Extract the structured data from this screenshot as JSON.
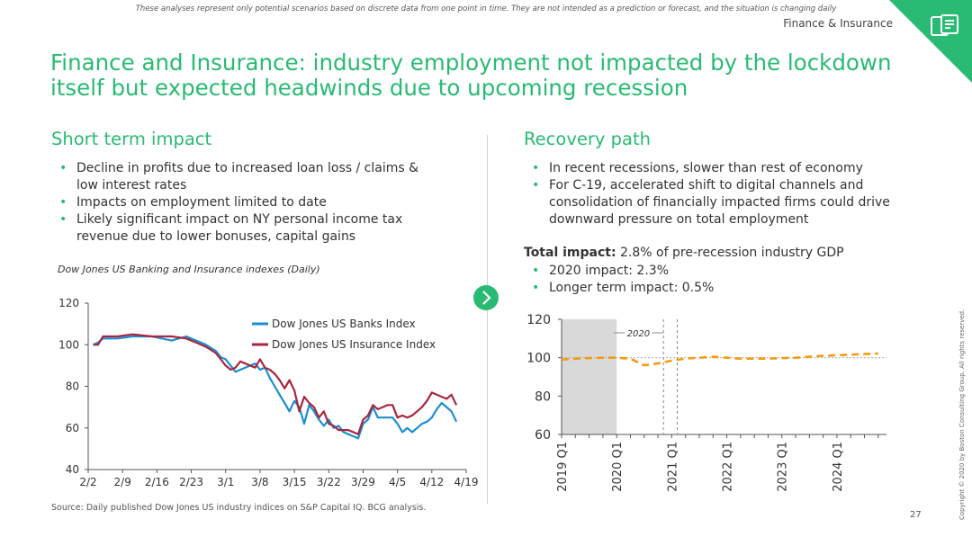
{
  "header": {
    "disclaimer": "These analyses represent only potential scenarios based on discrete data from one point in time. They are not intended as a prediction or forecast, and the situation is changing daily",
    "section": "Finance & Insurance",
    "title_line1": "Finance and Insurance: industry employment not impacted by the lockdown",
    "title_line2": "itself but expected headwinds due to upcoming recession"
  },
  "left": {
    "heading": "Short term impact",
    "bullets": [
      [
        "Decline in profits due to increased loan loss / claims &",
        "low interest rates"
      ],
      [
        "Impacts on employment limited to date"
      ],
      [
        "Likely significant impact on NY personal income tax",
        "revenue due to lower bonuses, capital gains"
      ]
    ],
    "chart_caption": "Dow Jones US Banking and Insurance indexes (Daily)"
  },
  "right": {
    "heading": "Recovery path",
    "bullets": [
      [
        "In recent recessions, slower than rest of economy"
      ],
      [
        "For C-19, accelerated shift to digital channels and",
        "consolidation of financially impacted firms could drive",
        "downward pressure on total employment"
      ]
    ],
    "total_label": "Total impact:",
    "total_text": " 2.8% of pre-recession industry GDP",
    "impact_bullets": [
      [
        "2020 impact: 2.3%"
      ],
      [
        "Longer term impact: 0.5%"
      ]
    ]
  },
  "footer": {
    "source": "Source: Daily published Dow Jones US industry indices on S&P Capital IQ. BCG analysis.",
    "page_number": "27",
    "copyright": "Copyright © 2020 by Boston Consulting Group. All rights reserved."
  },
  "colors": {
    "accent": "#29ba74",
    "banks": "#1a8fd1",
    "insurance": "#a8263f",
    "forecast": "#f39c12"
  },
  "chart_data": [
    {
      "type": "line",
      "ylim": [
        40,
        120
      ],
      "yticks": [
        40,
        60,
        80,
        100,
        120
      ],
      "xticks": [
        "2/2",
        "2/9",
        "2/16",
        "2/23",
        "3/1",
        "3/8",
        "3/15",
        "3/22",
        "3/29",
        "4/5",
        "4/12",
        "4/19"
      ],
      "xlim": [
        0,
        77
      ],
      "series": [
        {
          "name": "Dow Jones US Banks Index",
          "color": "#1a8fd1",
          "x": [
            1,
            2,
            3,
            6,
            9,
            13,
            15,
            17,
            20,
            22,
            23,
            24,
            26,
            27,
            28,
            29,
            30,
            31,
            34,
            35,
            36,
            37,
            38,
            39,
            40,
            41,
            42,
            43,
            44,
            45,
            46,
            47,
            48,
            49,
            50,
            51,
            52,
            53,
            54,
            55,
            56,
            57,
            58,
            59,
            60,
            61,
            62,
            63,
            64,
            65,
            66,
            67,
            68,
            69,
            70,
            71,
            72,
            73,
            74,
            75
          ],
          "y": [
            100,
            101,
            103,
            103,
            104,
            104,
            103,
            102,
            104,
            102,
            101,
            100,
            97,
            94,
            93,
            90,
            87,
            88,
            91,
            88,
            89,
            84,
            80,
            76,
            72,
            68,
            73,
            70,
            62,
            71,
            68,
            64,
            61,
            64,
            60,
            61,
            58,
            57,
            56,
            55,
            62,
            64,
            70,
            65,
            65,
            65,
            65,
            62,
            58,
            60,
            58,
            60,
            62,
            63,
            65,
            69,
            72,
            70,
            68,
            63
          ]
        },
        {
          "name": "Dow Jones US Insurance Index",
          "color": "#a8263f",
          "x": [
            1,
            2,
            3,
            6,
            9,
            13,
            15,
            17,
            20,
            22,
            23,
            24,
            26,
            27,
            28,
            29,
            30,
            31,
            34,
            35,
            36,
            37,
            38,
            39,
            40,
            41,
            42,
            43,
            44,
            45,
            46,
            47,
            48,
            49,
            50,
            51,
            52,
            53,
            54,
            55,
            56,
            57,
            58,
            59,
            60,
            61,
            62,
            63,
            64,
            65,
            66,
            67,
            68,
            69,
            70,
            71,
            72,
            73,
            74,
            75
          ],
          "y": [
            100,
            100,
            104,
            104,
            105,
            104,
            104,
            104,
            103,
            101,
            100,
            99,
            96,
            93,
            90,
            88,
            89,
            92,
            89,
            93,
            89,
            88,
            86,
            83,
            79,
            83,
            78,
            68,
            75,
            72,
            70,
            65,
            68,
            62,
            61,
            59,
            59,
            59,
            58,
            57,
            64,
            66,
            71,
            69,
            70,
            71,
            71,
            65,
            66,
            65,
            66,
            68,
            70,
            73,
            77,
            76,
            75,
            74,
            76,
            71
          ]
        }
      ]
    },
    {
      "type": "line",
      "ylim": [
        60,
        120
      ],
      "yticks": [
        60,
        80,
        100,
        120
      ],
      "xticks": [
        "2019 Q1",
        "2020 Q1",
        "2021 Q1",
        "2022 Q1",
        "2023 Q1",
        "2024 Q1"
      ],
      "shaded_period": [
        "2019 Q1",
        "2020 Q1"
      ],
      "annotation": "2020",
      "series": [
        {
          "name": "",
          "color": "#f39c12",
          "style": "dashed",
          "x": [
            2019.0,
            2019.25,
            2019.5,
            2019.75,
            2020.0,
            2020.25,
            2020.5,
            2020.75,
            2021.0,
            2021.25,
            2021.5,
            2021.75,
            2022.0,
            2022.25,
            2022.5,
            2022.75,
            2023.0,
            2023.25,
            2023.5,
            2023.75,
            2024.0,
            2024.25,
            2024.5,
            2024.75
          ],
          "y": [
            99,
            99.5,
            99.8,
            100,
            100,
            99.5,
            96,
            97,
            98.5,
            99.5,
            100,
            100.5,
            100,
            99.5,
            99.5,
            99.5,
            99.8,
            100,
            100.5,
            101,
            101.3,
            101.6,
            101.9,
            102.2
          ]
        }
      ]
    }
  ]
}
